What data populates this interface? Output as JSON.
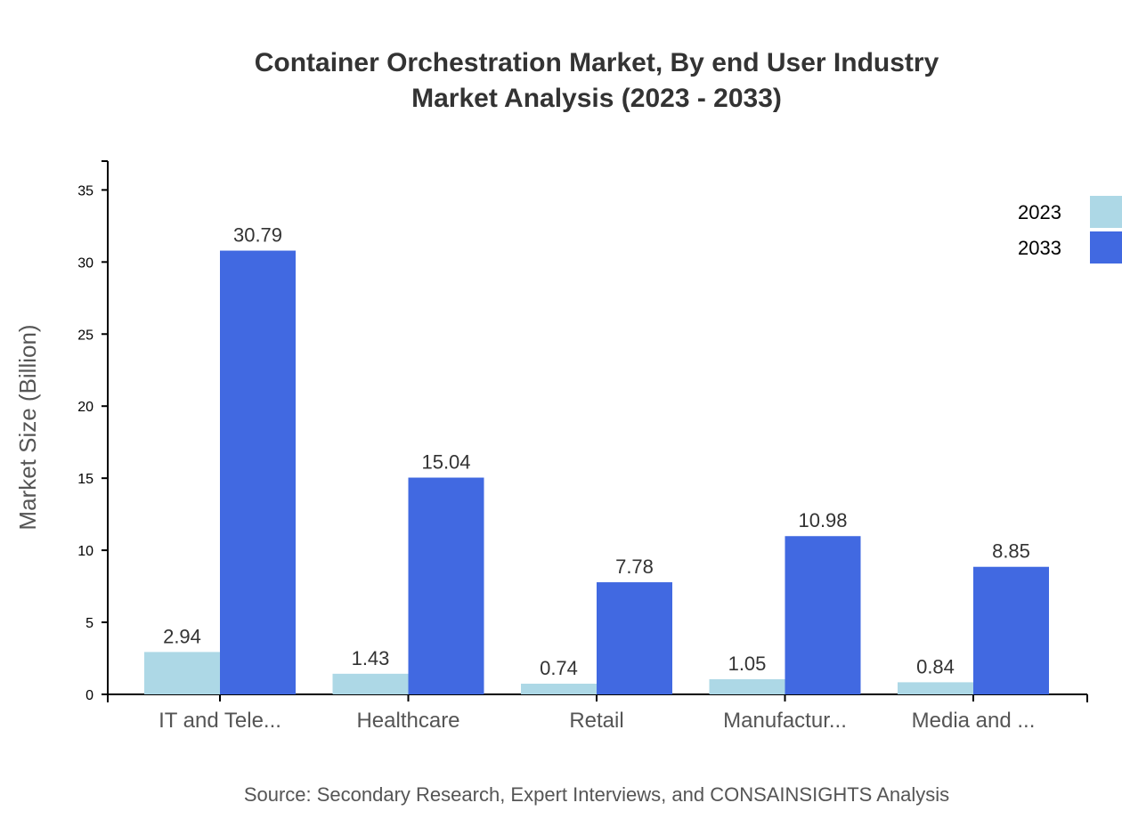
{
  "chart_data": {
    "type": "bar",
    "title": "Container Orchestration Market, By end User Industry",
    "subtitle": "Market Analysis (2023 - 2033)",
    "ylabel": "Market Size (Billion)",
    "xlabel": "",
    "categories": [
      "IT and Tele...",
      "Healthcare",
      "Retail",
      "Manufactur...",
      "Media and ..."
    ],
    "series": [
      {
        "name": "2023",
        "color": "#add8e6",
        "values": [
          2.94,
          1.43,
          0.74,
          1.05,
          0.84
        ]
      },
      {
        "name": "2033",
        "color": "#4169e1",
        "values": [
          30.79,
          15.04,
          7.78,
          10.98,
          8.85
        ]
      }
    ],
    "yticks": [
      0,
      5,
      10,
      15,
      20,
      25,
      30,
      35
    ],
    "ylim": [
      0,
      37
    ],
    "grid": false,
    "legend": "top-right",
    "source": "Source: Secondary Research, Expert Interviews, and CONSAINSIGHTS Analysis"
  }
}
